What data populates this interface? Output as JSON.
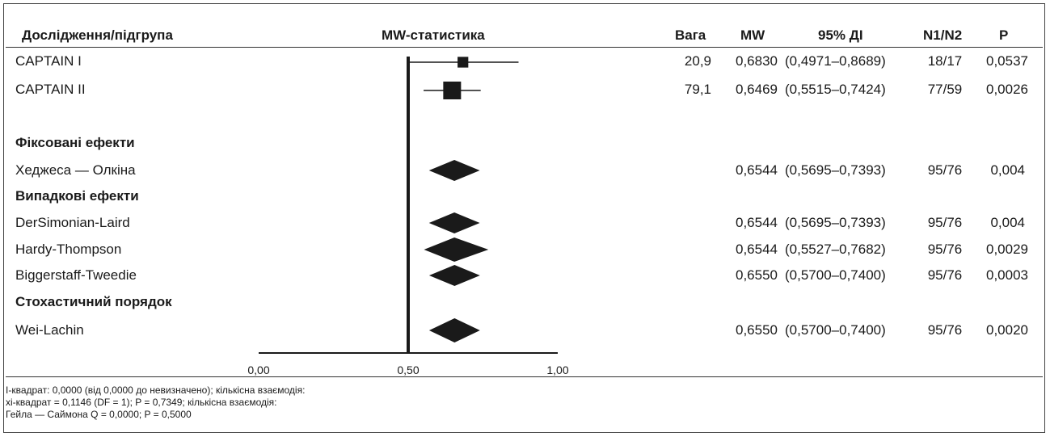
{
  "columns": {
    "study": "Дослідження/підгрупа",
    "stat": "MW-статистика",
    "weight": "Вага",
    "mw": "MW",
    "ci": "95% ДІ",
    "n": "N1/N2",
    "p": "P"
  },
  "rows": [
    {
      "label": "CAPTAIN I",
      "weight": "20,9",
      "mw": "0,6830",
      "ci": "(0,4971–0,8689)",
      "n": "18/17",
      "p": "0,0537"
    },
    {
      "label": "CAPTAIN II",
      "weight": "79,1",
      "mw": "0,6469",
      "ci": "(0,5515–0,7424)",
      "n": "77/59",
      "p": "0,0026"
    },
    {
      "label": "Фіксовані ефекти"
    },
    {
      "label": "Хеджеса — Олкіна",
      "weight": "",
      "mw": "0,6544",
      "ci": "(0,5695–0,7393)",
      "n": "95/76",
      "p": "0,004"
    },
    {
      "label": "Випадкові ефекти"
    },
    {
      "label": "DerSimonian-Laird",
      "weight": "",
      "mw": "0,6544",
      "ci": "(0,5695–0,7393)",
      "n": "95/76",
      "p": "0,004"
    },
    {
      "label": "Hardy-Thompson",
      "weight": "",
      "mw": "0,6544",
      "ci": "(0,5527–0,7682)",
      "n": "95/76",
      "p": "0,0029"
    },
    {
      "label": "Biggerstaff-Tweedie",
      "weight": "",
      "mw": "0,6550",
      "ci": "(0,5700–0,7400)",
      "n": "95/76",
      "p": "0,0003"
    },
    {
      "label": "Стохастичний порядок"
    },
    {
      "label": "Wei-Lachin",
      "weight": "",
      "mw": "0,6550",
      "ci": "(0,5700–0,7400)",
      "n": "95/76",
      "p": "0,0020"
    }
  ],
  "footer": [
    "I-квадрат: 0,0000 (від 0,0000 до невизначено); кількісна взаємодія:",
    "хі-квадрат = 0,1146 (DF = 1); P = 0,7349; кількісна взаємодія:",
    "Гейла — Саймона Q = 0,0000; P = 0,5000"
  ],
  "chart_data": {
    "type": "forest",
    "xlim": [
      0,
      1
    ],
    "ticks": [
      "0,00",
      "0,50",
      "1,00"
    ],
    "tick_values": [
      0,
      0.5,
      1
    ],
    "reference_line": 0.5,
    "studies": [
      {
        "name": "CAPTAIN I",
        "estimate": 0.683,
        "lower": 0.4971,
        "upper": 0.8689,
        "weight": 20.9
      },
      {
        "name": "CAPTAIN II",
        "estimate": 0.6469,
        "lower": 0.5515,
        "upper": 0.7424,
        "weight": 79.1
      }
    ],
    "pooled": [
      {
        "name": "Хеджеса — Олкіна",
        "estimate": 0.6544,
        "lower": 0.5695,
        "upper": 0.7393
      },
      {
        "name": "DerSimonian-Laird",
        "estimate": 0.6544,
        "lower": 0.5695,
        "upper": 0.7393
      },
      {
        "name": "Hardy-Thompson",
        "estimate": 0.6544,
        "lower": 0.5527,
        "upper": 0.7682
      },
      {
        "name": "Biggerstaff-Tweedie",
        "estimate": 0.655,
        "lower": 0.57,
        "upper": 0.74
      },
      {
        "name": "Wei-Lachin",
        "estimate": 0.655,
        "lower": 0.57,
        "upper": 0.74
      }
    ]
  }
}
